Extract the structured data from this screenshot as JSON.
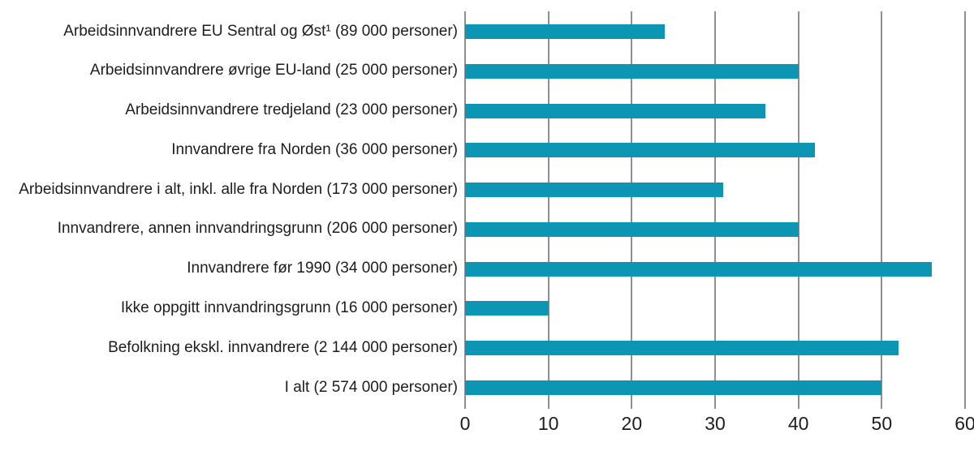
{
  "chart_data": {
    "type": "bar",
    "orientation": "horizontal",
    "categories": [
      "Arbeidsinnvandrere EU Sentral og Øst¹ (89 000 personer)",
      "Arbeidsinnvandrere øvrige EU-land (25 000 personer)",
      "Arbeidsinnvandrere tredjeland (23 000 personer)",
      "Innvandrere fra Norden (36 000 personer)",
      "Arbeidsinnvandrere i alt, inkl. alle fra Norden (173 000 personer)",
      "Innvandrere, annen innvandringsgrunn (206 000 personer)",
      "Innvandrere før 1990 (34 000 personer)",
      "Ikke oppgitt innvandringsgrunn (16 000 personer)",
      "Befolkning ekskl. innvandrere (2 144 000 personer)",
      "I alt (2 574 000 personer)"
    ],
    "values": [
      24,
      40,
      36,
      42,
      31,
      40,
      56,
      10,
      52,
      50
    ],
    "xticks": [
      "0",
      "10",
      "20",
      "30",
      "40",
      "50",
      "60"
    ],
    "xtick_values": [
      0,
      10,
      20,
      30,
      40,
      50,
      60
    ],
    "xlim": [
      0,
      60
    ],
    "grid": "vertical",
    "legend": "none",
    "colors": {
      "bar": "#0D96B4",
      "gridline": "#8F8F8F",
      "text": "#1d1d1b",
      "background": "#ffffff"
    }
  }
}
